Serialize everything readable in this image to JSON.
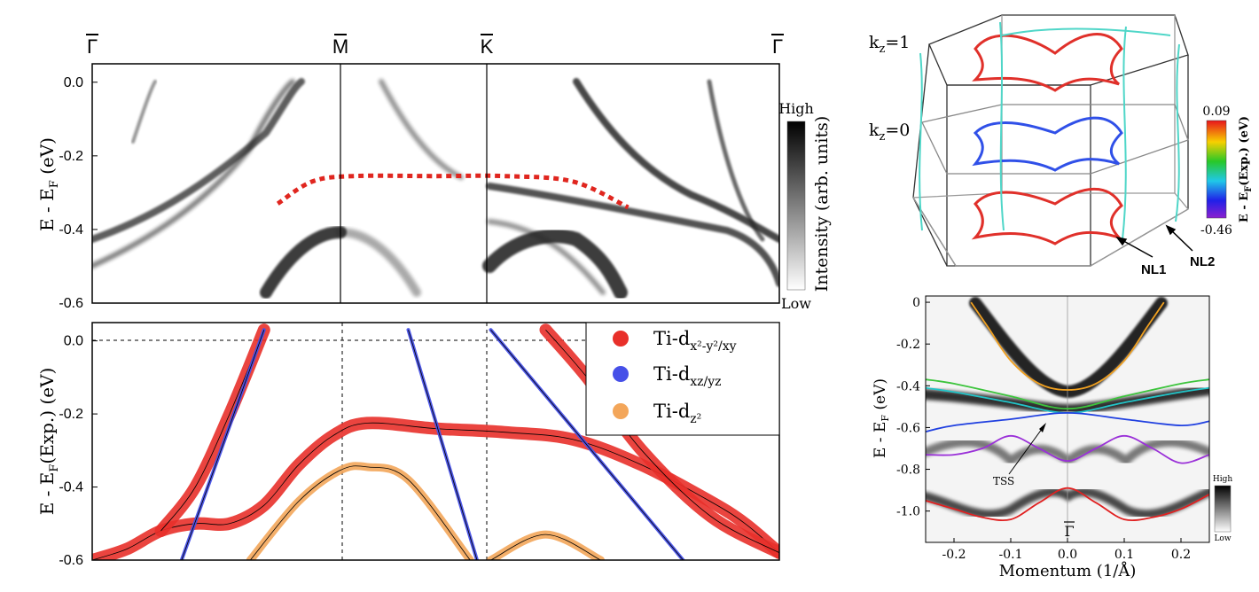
{
  "chart_data": [
    {
      "panel": "arpes-dispersion",
      "type": "heatmap",
      "high_symbol_points": [
        "Γ",
        "M",
        "K",
        "Γ"
      ],
      "ylabel": "E - E",
      "ylabel_sub": "F",
      "ylabel_unit": " (eV)",
      "ylim": [
        -0.6,
        0.05
      ],
      "yticks": [
        0.0,
        -0.2,
        -0.4,
        -0.6
      ],
      "ytick_labels": [
        "0.0",
        "-0.2",
        "-0.4",
        "-0.6"
      ],
      "colorbar": {
        "label": "Intensity (arb. units)",
        "high": "High",
        "low": "Low"
      },
      "dashed_overlay": {
        "color": "#e0261f",
        "k": [
          0.27,
          0.32,
          0.38,
          0.5,
          0.6,
          0.7,
          0.78
        ],
        "energy": [
          -0.33,
          -0.27,
          -0.255,
          -0.255,
          -0.255,
          -0.27,
          -0.34
        ]
      }
    },
    {
      "panel": "dft-bands",
      "type": "scatter",
      "ylabel": "E - E",
      "ylabel_sub": "F",
      "ylabel_unit": "(Exp.) (eV)",
      "ylim": [
        -0.6,
        0.05
      ],
      "yticks": [
        0.0,
        -0.2,
        -0.4,
        -0.6
      ],
      "ytick_labels": [
        "0.0",
        "-0.2",
        "-0.4",
        "-0.6"
      ],
      "legend": [
        {
          "name": "Ti-d",
          "sub": "x²-y²/xy",
          "color": "#e8302a"
        },
        {
          "name": "Ti-d",
          "sub": "xz/yz",
          "color": "#4650e8"
        },
        {
          "name": "Ti-d",
          "sub": "z²",
          "color": "#f3a65a"
        }
      ],
      "series": [
        {
          "name": "Ti-dx2-y2/xy upper",
          "color": "#e8302a",
          "k": [
            0.0,
            0.05,
            0.1,
            0.15,
            0.2,
            0.25,
            0.3,
            0.35,
            0.4,
            0.5,
            0.6,
            0.7,
            0.8,
            0.9,
            0.95,
            1.0
          ],
          "energy": [
            -0.6,
            -0.57,
            -0.52,
            -0.5,
            -0.5,
            -0.45,
            -0.34,
            -0.26,
            -0.225,
            -0.24,
            -0.25,
            -0.27,
            -0.34,
            -0.44,
            -0.5,
            -0.58
          ]
        },
        {
          "name": "Ti-dx2-y2/xy steep",
          "color": "#e8302a",
          "k": [
            0.1,
            0.15,
            0.2,
            0.25
          ],
          "energy": [
            -0.52,
            -0.4,
            -0.2,
            0.03
          ]
        },
        {
          "name": "Ti-dx2-y2/xy lower",
          "color": "#e8302a",
          "k": [
            0.66,
            0.72,
            0.8,
            0.9,
            1.0
          ],
          "energy": [
            0.03,
            -0.1,
            -0.3,
            -0.48,
            -0.58
          ]
        },
        {
          "name": "Ti-dz2 hump",
          "color": "#f3a65a",
          "k": [
            0.23,
            0.3,
            0.36,
            0.4,
            0.46,
            0.55
          ],
          "energy": [
            -0.6,
            -0.44,
            -0.355,
            -0.345,
            -0.38,
            -0.6
          ]
        },
        {
          "name": "Ti-dz2 small hump",
          "color": "#f3a65a",
          "k": [
            0.58,
            0.66,
            0.74
          ],
          "energy": [
            -0.6,
            -0.53,
            -0.6
          ]
        },
        {
          "name": "Ti-dxz/yz",
          "color": "#4650e8",
          "k": [
            0.13,
            0.25
          ],
          "energy": [
            -0.6,
            0.03
          ]
        },
        {
          "name": "Ti-dxz/yz 2",
          "color": "#4650e8",
          "k": [
            0.46,
            0.56
          ],
          "energy": [
            0.03,
            -0.6
          ]
        },
        {
          "name": "Ti-dxz/yz 3",
          "color": "#4650e8",
          "k": [
            0.58,
            0.86
          ],
          "energy": [
            0.03,
            -0.6
          ]
        }
      ]
    },
    {
      "panel": "brillouin-zone",
      "type": "diagram",
      "kz_top": "k",
      "kz_top_val": "=1",
      "kz_mid": "k",
      "kz_mid_val": "=0",
      "kz_sub": "z",
      "nl1": "NL1",
      "nl2": "NL2",
      "colorbar": {
        "max": "0.09",
        "min": "-0.46",
        "label": "E - E",
        "label_sub": "F",
        "label_tail": "(Exp.) (eV)"
      }
    },
    {
      "panel": "arpes-momentum-cut",
      "type": "heatmap",
      "xlabel": "Momentum (1/Å)",
      "ylabel": "E - E",
      "ylabel_sub": "F",
      "ylabel_unit": " (eV)",
      "xlim": [
        -0.25,
        0.25
      ],
      "ylim": [
        -1.15,
        0.03
      ],
      "xticks": [
        -0.2,
        -0.1,
        0.0,
        0.1,
        0.2
      ],
      "xtick_labels": [
        "-0.2",
        "-0.1",
        "0.0",
        "0.1",
        "0.2"
      ],
      "yticks": [
        0,
        -0.2,
        -0.4,
        -0.6,
        -0.8,
        -1.0
      ],
      "ytick_labels": [
        "0",
        "-0.2",
        "-0.4",
        "-0.6",
        "-0.8",
        "-1.0"
      ],
      "gamma_label": "Γ",
      "annotation": "TSS",
      "colorbar": {
        "high": "High",
        "low": "Low"
      },
      "series": [
        {
          "name": "orange band",
          "color": "#f0a020",
          "x": [
            -0.17,
            -0.14,
            -0.1,
            -0.05,
            0.0,
            0.05,
            0.1,
            0.14,
            0.17
          ],
          "y": [
            0.0,
            -0.12,
            -0.28,
            -0.39,
            -0.42,
            -0.39,
            -0.28,
            -0.12,
            0.0
          ]
        },
        {
          "name": "green band",
          "color": "#3cc43c",
          "x": [
            -0.25,
            -0.2,
            -0.1,
            0.0,
            0.1,
            0.2,
            0.25
          ],
          "y": [
            -0.37,
            -0.39,
            -0.45,
            -0.51,
            -0.45,
            -0.39,
            -0.37
          ]
        },
        {
          "name": "cyan band",
          "color": "#22c4c8",
          "x": [
            -0.25,
            -0.2,
            -0.1,
            0.0,
            0.1,
            0.2,
            0.25
          ],
          "y": [
            -0.41,
            -0.43,
            -0.48,
            -0.53,
            -0.48,
            -0.43,
            -0.41
          ]
        },
        {
          "name": "blue band",
          "color": "#2040e0",
          "x": [
            -0.25,
            -0.2,
            -0.1,
            0.0,
            0.1,
            0.2,
            0.25
          ],
          "y": [
            -0.62,
            -0.59,
            -0.56,
            -0.53,
            -0.56,
            -0.59,
            -0.57
          ]
        },
        {
          "name": "purple band",
          "color": "#9a30d8",
          "x": [
            -0.25,
            -0.2,
            -0.15,
            -0.1,
            -0.05,
            0.0,
            0.05,
            0.1,
            0.15,
            0.2,
            0.25
          ],
          "y": [
            -0.73,
            -0.73,
            -0.7,
            -0.64,
            -0.7,
            -0.76,
            -0.7,
            -0.64,
            -0.7,
            -0.77,
            -0.73
          ]
        },
        {
          "name": "red band",
          "color": "#e02020",
          "x": [
            -0.25,
            -0.2,
            -0.15,
            -0.1,
            -0.05,
            0.0,
            0.05,
            0.1,
            0.15,
            0.2,
            0.25
          ],
          "y": [
            -0.95,
            -0.99,
            -1.03,
            -1.04,
            -0.96,
            -0.89,
            -0.96,
            -1.04,
            -1.03,
            -0.99,
            -0.92
          ]
        }
      ]
    }
  ]
}
